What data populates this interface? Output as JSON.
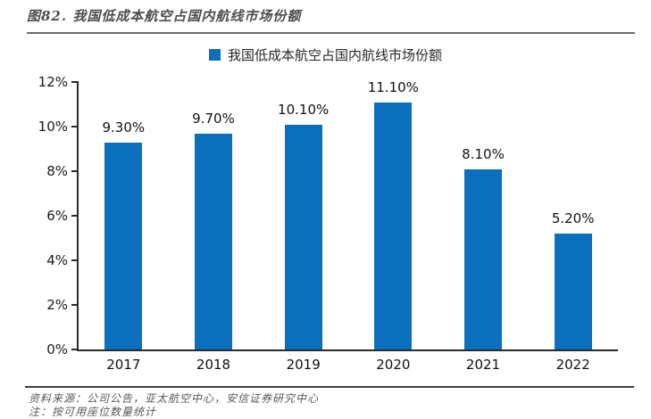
{
  "figure": {
    "title": "图82. 我国低成本航空占国内航线市场份额",
    "source": "资料来源：公司公告，亚太航空中心，安信证券研究中心",
    "note": "注：按可用座位数量统计"
  },
  "chart_data": {
    "type": "bar",
    "title": "",
    "legend": [
      "我国低成本航空占国内航线市场份额"
    ],
    "legend_position": "top",
    "categories": [
      "2017",
      "2018",
      "2019",
      "2020",
      "2021",
      "2022"
    ],
    "values": [
      9.3,
      9.7,
      10.1,
      11.1,
      8.1,
      5.2
    ],
    "value_labels": [
      "9.30%",
      "9.70%",
      "10.10%",
      "11.10%",
      "8.10%",
      "5.20%"
    ],
    "xlabel": "",
    "ylabel": "",
    "ylim": [
      0,
      12
    ],
    "ytick_values": [
      0,
      2,
      4,
      6,
      8,
      10,
      12
    ],
    "ytick_labels": [
      "0%",
      "2%",
      "4%",
      "6%",
      "8%",
      "10%",
      "12%"
    ],
    "grid": false,
    "bar_color": "#0a70be"
  },
  "colors": {
    "bar": "#0a70be",
    "axis": "#2b2b2b",
    "title_text": "#4d4d4d",
    "footer_text": "#595959"
  }
}
